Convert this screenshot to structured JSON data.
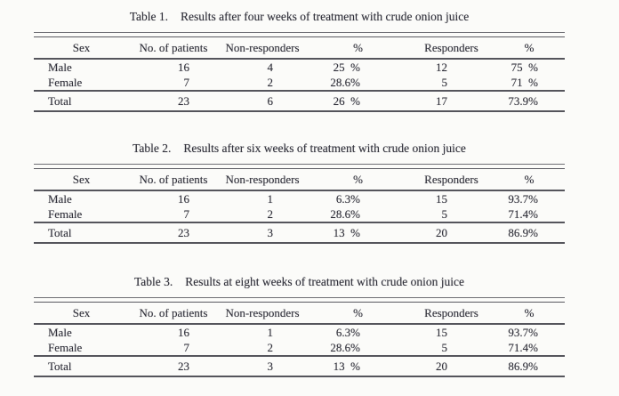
{
  "page": {
    "background": "#fbfbf9",
    "text_color": "#30303a",
    "rule_color": "#55555c"
  },
  "tables": [
    {
      "label": "Table 1.",
      "caption": "Results after four weeks of treatment with crude onion juice",
      "columns": [
        "Sex",
        "No. of patients",
        "Non-responders",
        "%",
        "Responders",
        "%"
      ],
      "rows": [
        [
          "Male",
          "16",
          "4",
          "25  %",
          "12",
          "75  %"
        ],
        [
          "Female",
          "7",
          "2",
          "28.6%",
          "5",
          "71  %"
        ]
      ],
      "total": [
        "Total",
        "23",
        "6",
        "26  %",
        "17",
        "73.9%"
      ]
    },
    {
      "label": "Table 2.",
      "caption": "Results after six weeks of treatment with crude onion juice",
      "columns": [
        "Sex",
        "No. of patients",
        "Non-responders",
        "%",
        "Responders",
        "%"
      ],
      "rows": [
        [
          "Male",
          "16",
          "1",
          "6.3%",
          "15",
          "93.7%"
        ],
        [
          "Female",
          "7",
          "2",
          "28.6%",
          "5",
          "71.4%"
        ]
      ],
      "total": [
        "Total",
        "23",
        "3",
        "13  %",
        "20",
        "86.9%"
      ]
    },
    {
      "label": "Table 3.",
      "caption": "Results at eight weeks of treatment with crude onion juice",
      "columns": [
        "Sex",
        "No. of patients",
        "Non-responders",
        "%",
        "Responders",
        "%"
      ],
      "rows": [
        [
          "Male",
          "16",
          "1",
          "6.3%",
          "15",
          "93.7%"
        ],
        [
          "Female",
          "7",
          "2",
          "28.6%",
          "5",
          "71.4%"
        ]
      ],
      "total": [
        "Total",
        "23",
        "3",
        "13  %",
        "20",
        "86.9%"
      ]
    }
  ]
}
